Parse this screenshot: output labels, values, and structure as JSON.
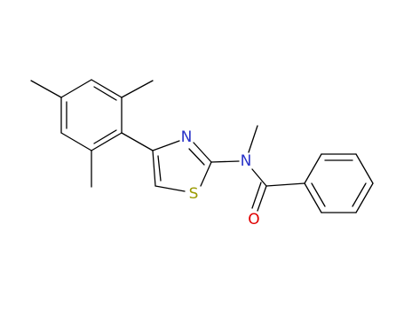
{
  "atoms": [
    {
      "label": "N"
    },
    {
      "label": "N"
    },
    {
      "label": "S"
    },
    {
      "label": "O"
    }
  ]
}
